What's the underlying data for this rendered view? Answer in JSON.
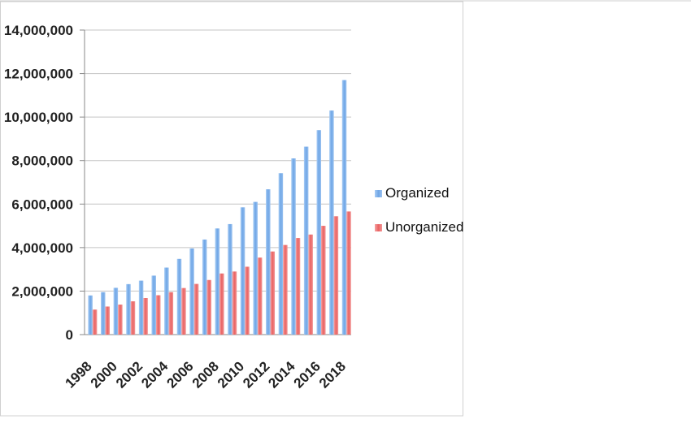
{
  "chart_data": {
    "type": "bar",
    "title": "",
    "xlabel": "",
    "ylabel": "",
    "categories": [
      "1998",
      "1999",
      "2000",
      "2001",
      "2002",
      "2003",
      "2004",
      "2005",
      "2006",
      "2007",
      "2008",
      "2009",
      "2010",
      "2011",
      "2012",
      "2013",
      "2014",
      "2015",
      "2016",
      "2017",
      "2018"
    ],
    "x_tick_labels": [
      "1998",
      "2000",
      "2002",
      "2004",
      "2006",
      "2008",
      "2010",
      "2012",
      "2014",
      "2016",
      "2018"
    ],
    "y_tick_labels": [
      "0",
      "2,000,000",
      "4,000,000",
      "6,000,000",
      "8,000,000",
      "10,000,000",
      "12,000,000",
      "14,000,000"
    ],
    "ylim": [
      0,
      14000000
    ],
    "y_ticks": [
      0,
      2000000,
      4000000,
      6000000,
      8000000,
      10000000,
      12000000,
      14000000
    ],
    "grid": true,
    "legend_position": "right",
    "series": [
      {
        "name": "Organized",
        "color": "#7aaee8",
        "values": [
          1800000,
          1950000,
          2150000,
          2320000,
          2480000,
          2710000,
          3080000,
          3480000,
          3960000,
          4370000,
          4880000,
          5080000,
          5850000,
          6100000,
          6680000,
          7420000,
          8100000,
          8640000,
          9400000,
          10300000,
          11700000
        ]
      },
      {
        "name": "Unorganized",
        "color": "#ef7f7f",
        "values": [
          1150000,
          1290000,
          1380000,
          1530000,
          1680000,
          1810000,
          1950000,
          2140000,
          2330000,
          2510000,
          2810000,
          2900000,
          3120000,
          3540000,
          3820000,
          4120000,
          4440000,
          4600000,
          5000000,
          5440000,
          5660000
        ]
      }
    ]
  }
}
